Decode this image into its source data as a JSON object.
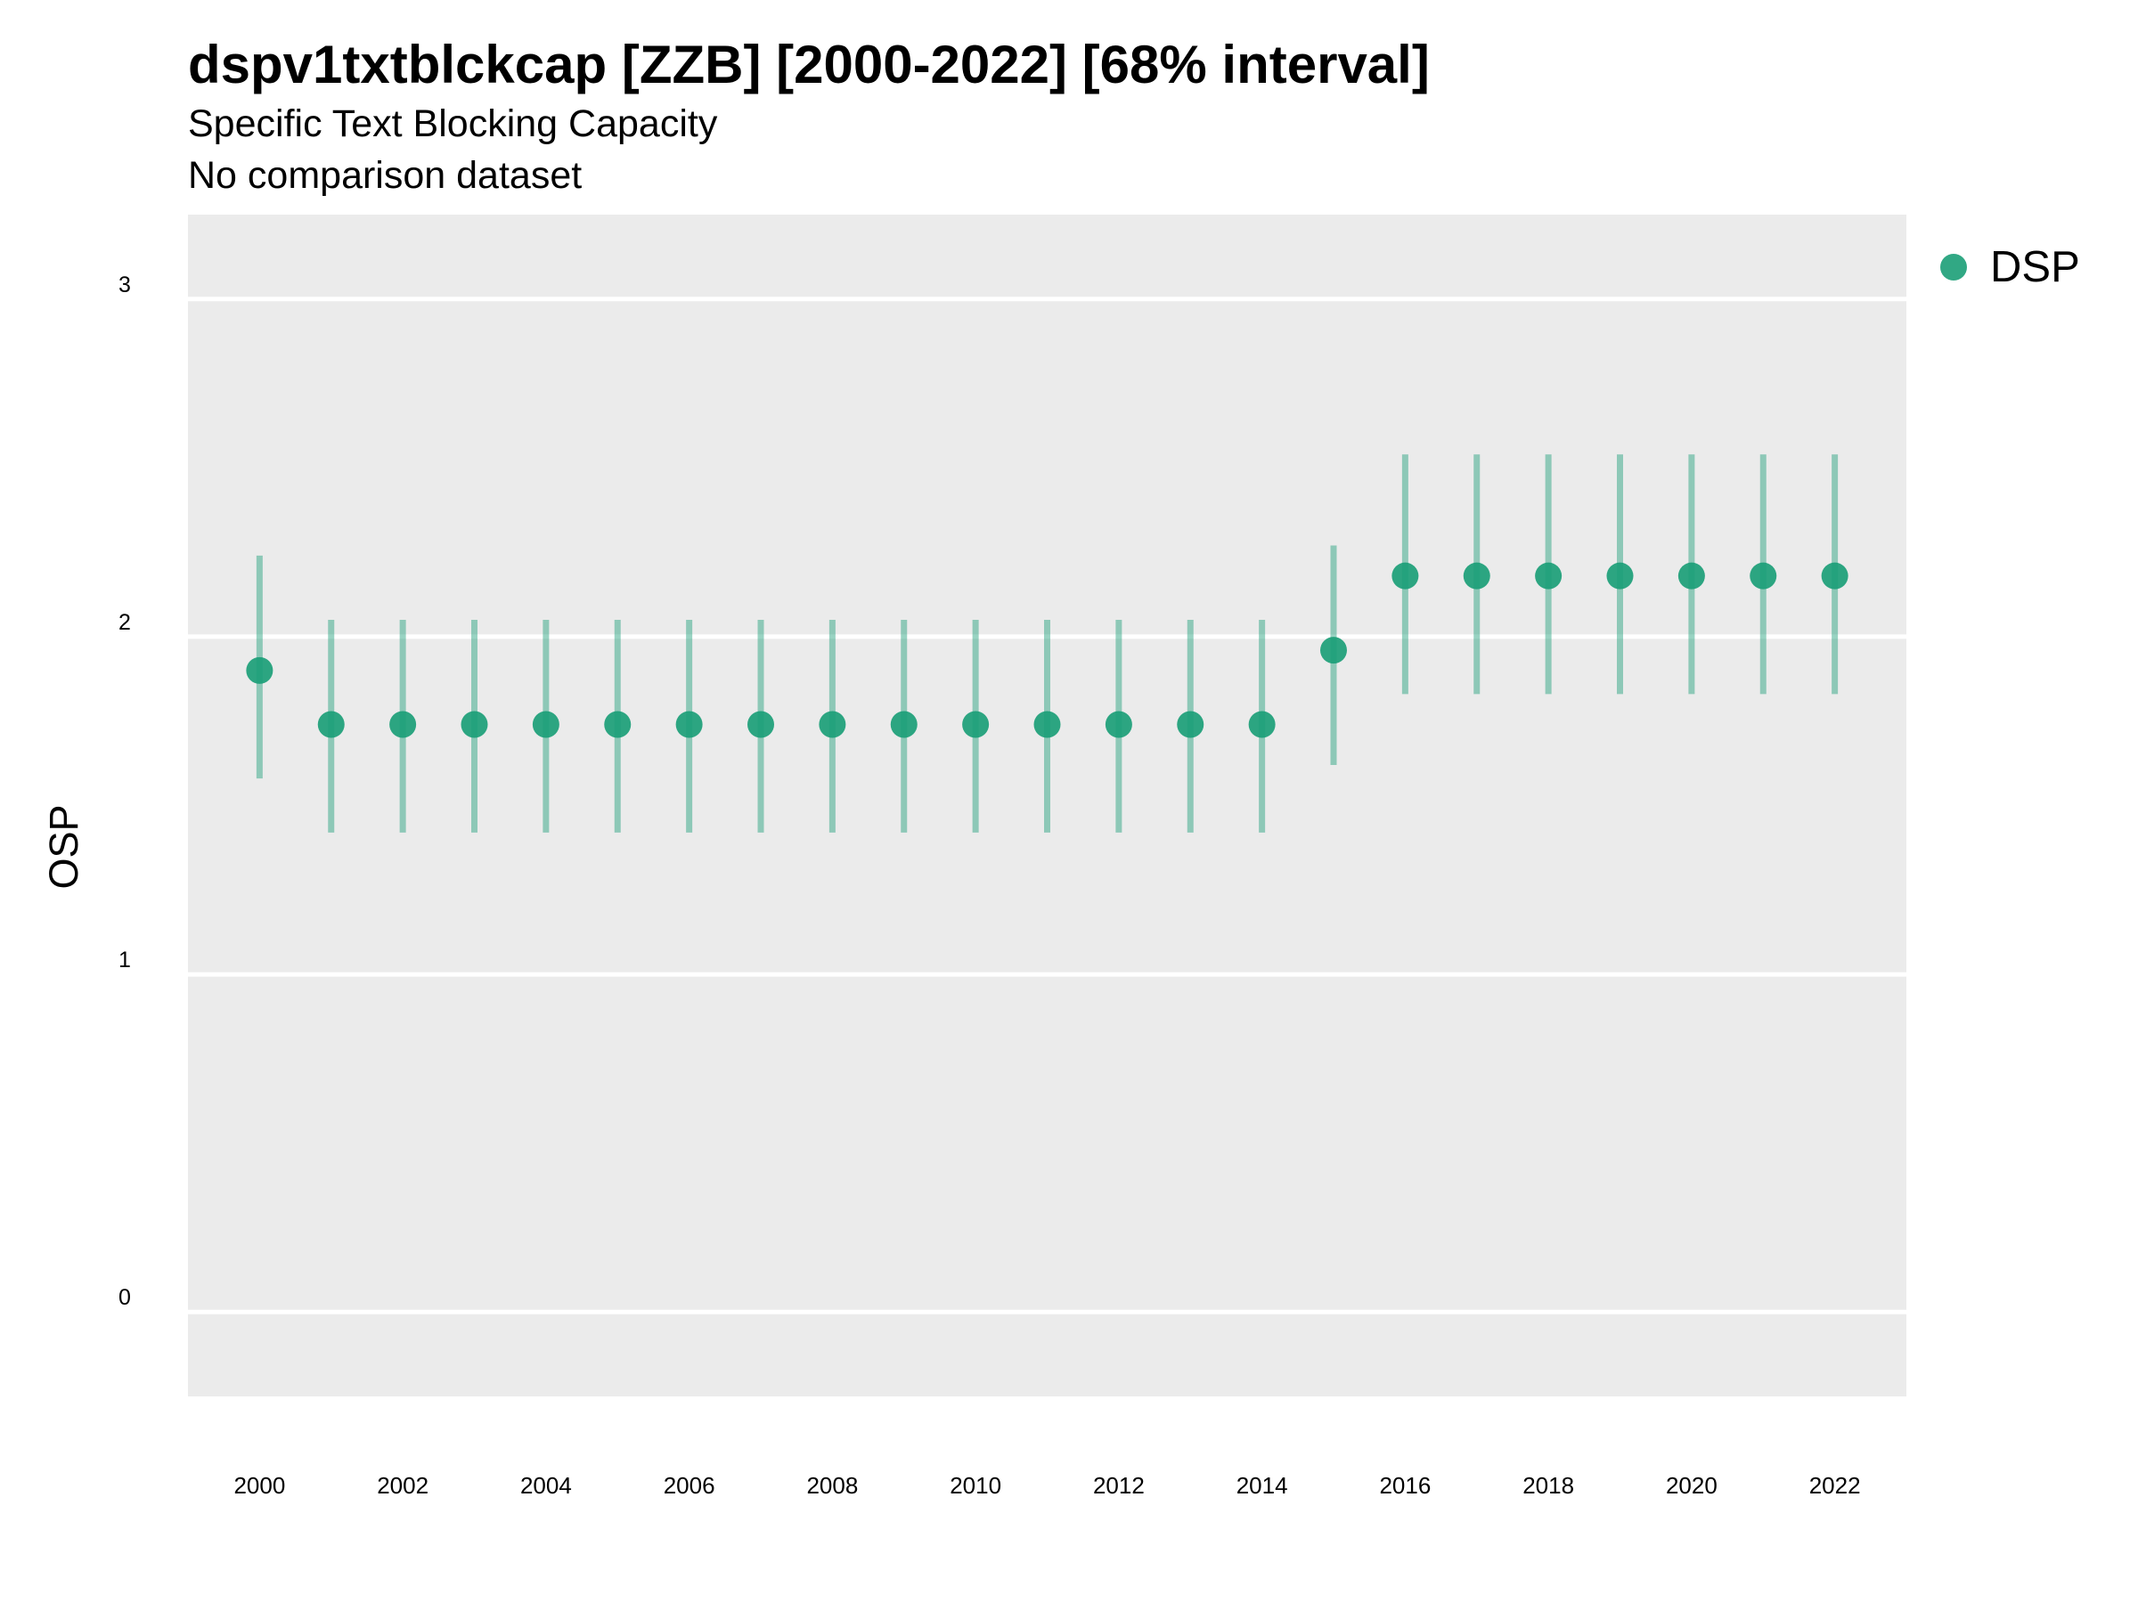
{
  "chart_data": {
    "type": "scatter",
    "title": "dspv1txtblckcap [ZZB] [2000-2022] [68% interval]",
    "subtitle": "Specific Text Blocking Capacity",
    "caption": "No comparison dataset",
    "xlabel": "",
    "ylabel": "OSP",
    "ylim": [
      -0.25,
      3.25
    ],
    "xlim": [
      1999,
      2023
    ],
    "yticks": [
      "0",
      "1",
      "2",
      "3"
    ],
    "xticks": [
      "2000",
      "2002",
      "2004",
      "2006",
      "2008",
      "2010",
      "2012",
      "2014",
      "2016",
      "2018",
      "2020",
      "2022"
    ],
    "grid": true,
    "legend_position": "top-right",
    "series": [
      {
        "name": "DSP",
        "color": "#1b9e77",
        "x": [
          2000,
          2001,
          2002,
          2003,
          2004,
          2005,
          2006,
          2007,
          2008,
          2009,
          2010,
          2011,
          2012,
          2013,
          2014,
          2015,
          2016,
          2017,
          2018,
          2019,
          2020,
          2021,
          2022
        ],
        "y": [
          1.9,
          1.74,
          1.74,
          1.74,
          1.74,
          1.74,
          1.74,
          1.74,
          1.74,
          1.74,
          1.74,
          1.74,
          1.74,
          1.74,
          1.74,
          1.96,
          2.18,
          2.18,
          2.18,
          2.18,
          2.18,
          2.18,
          2.18
        ],
        "lower": [
          1.58,
          1.42,
          1.42,
          1.42,
          1.42,
          1.42,
          1.42,
          1.42,
          1.42,
          1.42,
          1.42,
          1.42,
          1.42,
          1.42,
          1.42,
          1.62,
          1.83,
          1.83,
          1.83,
          1.83,
          1.83,
          1.83,
          1.83
        ],
        "upper": [
          2.24,
          2.05,
          2.05,
          2.05,
          2.05,
          2.05,
          2.05,
          2.05,
          2.05,
          2.05,
          2.05,
          2.05,
          2.05,
          2.05,
          2.05,
          2.27,
          2.54,
          2.54,
          2.54,
          2.54,
          2.54,
          2.54,
          2.54
        ]
      }
    ]
  }
}
